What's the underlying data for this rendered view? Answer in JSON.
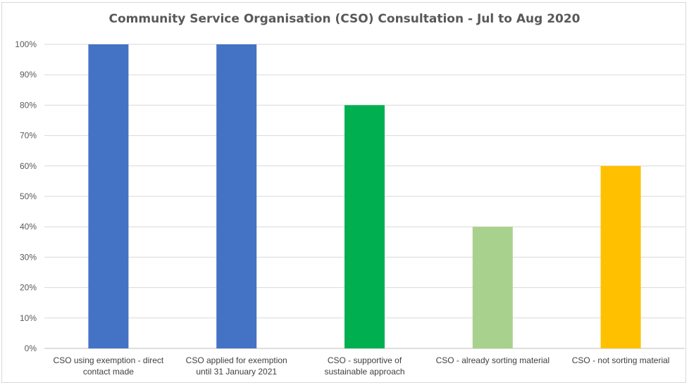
{
  "chart_data": {
    "type": "bar",
    "title": "Community Service Organisation (CSO) Consultation - Jul to Aug 2020",
    "xlabel": "",
    "ylabel": "",
    "ylim": [
      0,
      1
    ],
    "y_tick_values": [
      0,
      0.1,
      0.2,
      0.3,
      0.4,
      0.5,
      0.6,
      0.7,
      0.8,
      0.9,
      1.0
    ],
    "y_tick_labels": [
      "0%",
      "10%",
      "20%",
      "30%",
      "40%",
      "50%",
      "60%",
      "70%",
      "80%",
      "90%",
      "100%"
    ],
    "categories": [
      [
        "CSO using exemption  - direct",
        "contact made"
      ],
      [
        "CSO applied for exemption",
        "until 31 January 2021"
      ],
      [
        "CSO - supportive of",
        "sustainable approach"
      ],
      [
        "CSO - already sorting material"
      ],
      [
        "CSO - not sorting material"
      ]
    ],
    "values": [
      1.0,
      1.0,
      0.8,
      0.4,
      0.6
    ],
    "colors": [
      "#4472c4",
      "#4472c4",
      "#00b050",
      "#a9d18e",
      "#ffc000"
    ],
    "grid": true,
    "legend": "none"
  }
}
